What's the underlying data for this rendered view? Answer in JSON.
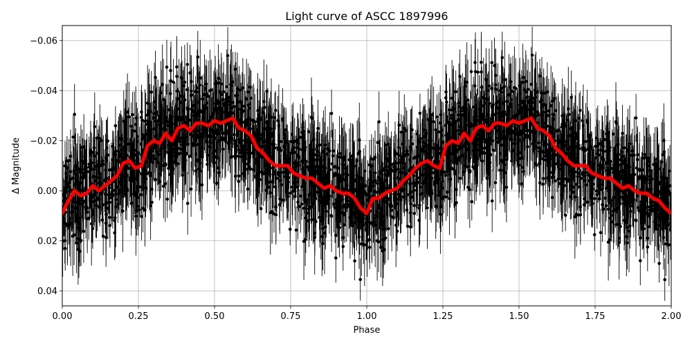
{
  "chart_data": {
    "type": "scatter",
    "title": "Light curve of ASCC 1897996",
    "xlabel": "Phase",
    "ylabel": "Δ Magnitude",
    "xlim": [
      0.0,
      2.0
    ],
    "ylim": [
      -0.066,
      0.046
    ],
    "y_inverted": true,
    "grid": true,
    "xticks": [
      0.0,
      0.25,
      0.5,
      0.75,
      1.0,
      1.25,
      1.5,
      1.75,
      2.0
    ],
    "xtick_labels": [
      "0.00",
      "0.25",
      "0.50",
      "0.75",
      "1.00",
      "1.25",
      "1.50",
      "1.75",
      "2.00"
    ],
    "yticks": [
      -0.06,
      -0.04,
      -0.02,
      0.0,
      0.02,
      0.04
    ],
    "ytick_labels": [
      "−0.06",
      "−0.04",
      "−0.02",
      "0.00",
      "0.02",
      "0.04"
    ],
    "series": [
      {
        "kind": "errorbar-points",
        "color": "#000000",
        "points_per_period": 1400,
        "typical_error": 0.012,
        "scatter_sigma": 0.016
      },
      {
        "kind": "line",
        "color": "#ff0000",
        "x": [
          0.0,
          0.02,
          0.04,
          0.06,
          0.08,
          0.1,
          0.12,
          0.14,
          0.16,
          0.18,
          0.2,
          0.22,
          0.24,
          0.26,
          0.28,
          0.3,
          0.32,
          0.34,
          0.36,
          0.38,
          0.4,
          0.42,
          0.44,
          0.46,
          0.48,
          0.5,
          0.52,
          0.54,
          0.56,
          0.58,
          0.6,
          0.62,
          0.64,
          0.66,
          0.68,
          0.7,
          0.72,
          0.74,
          0.76,
          0.78,
          0.8,
          0.82,
          0.84,
          0.86,
          0.88,
          0.9,
          0.92,
          0.94,
          0.96,
          0.98,
          1.0,
          1.02,
          1.04,
          1.06,
          1.08,
          1.1,
          1.12,
          1.14,
          1.16,
          1.18,
          1.2,
          1.22,
          1.24,
          1.26,
          1.28,
          1.3,
          1.32,
          1.34,
          1.36,
          1.38,
          1.4,
          1.42,
          1.44,
          1.46,
          1.48,
          1.5,
          1.52,
          1.54,
          1.56,
          1.58,
          1.6,
          1.62,
          1.64,
          1.66,
          1.68,
          1.7,
          1.72,
          1.74,
          1.76,
          1.78,
          1.8,
          1.82,
          1.84,
          1.86,
          1.88,
          1.9,
          1.92,
          1.94,
          1.96,
          1.98,
          2.0
        ],
        "y": [
          0.009,
          0.004,
          0.0,
          0.002,
          0.001,
          -0.002,
          0.0,
          -0.002,
          -0.004,
          -0.006,
          -0.011,
          -0.012,
          -0.009,
          -0.01,
          -0.018,
          -0.02,
          -0.019,
          -0.023,
          -0.02,
          -0.025,
          -0.026,
          -0.024,
          -0.027,
          -0.027,
          -0.026,
          -0.028,
          -0.027,
          -0.028,
          -0.029,
          -0.025,
          -0.024,
          -0.022,
          -0.017,
          -0.015,
          -0.012,
          -0.01,
          -0.01,
          -0.01,
          -0.007,
          -0.006,
          -0.005,
          -0.005,
          -0.003,
          -0.001,
          -0.002,
          0.0,
          0.001,
          0.001,
          0.003,
          0.007,
          0.009,
          0.003,
          0.003,
          0.001,
          0.0,
          -0.001,
          -0.004,
          -0.006,
          -0.009,
          -0.011,
          -0.012,
          -0.01,
          -0.009,
          -0.018,
          -0.02,
          -0.019,
          -0.023,
          -0.02,
          -0.025,
          -0.026,
          -0.024,
          -0.027,
          -0.027,
          -0.026,
          -0.028,
          -0.027,
          -0.028,
          -0.029,
          -0.025,
          -0.024,
          -0.022,
          -0.017,
          -0.015,
          -0.012,
          -0.01,
          -0.01,
          -0.01,
          -0.007,
          -0.006,
          -0.005,
          -0.005,
          -0.003,
          -0.001,
          -0.002,
          0.0,
          0.001,
          0.001,
          0.003,
          0.004,
          0.007,
          0.009
        ]
      }
    ]
  }
}
